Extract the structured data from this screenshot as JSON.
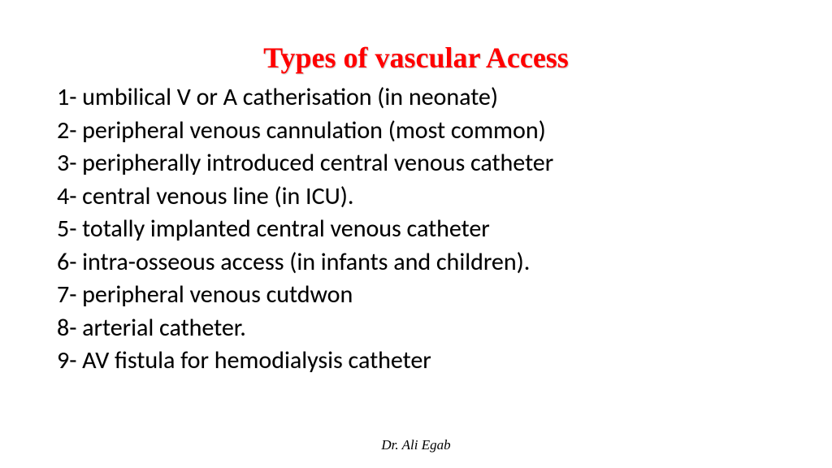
{
  "title": "Types of vascular Access",
  "items": [
    {
      "num": "1- ",
      "text": "umbilical V or A catherisation (in neonate)"
    },
    {
      "num": "2- ",
      "text": "peripheral venous cannulation (most common)"
    },
    {
      "num": "3- ",
      "text": "peripherally introduced central venous catheter"
    },
    {
      "num": "4- ",
      "text": "central venous line (in ICU)."
    },
    {
      "num": "5- ",
      "text": "totally implanted central venous catheter"
    },
    {
      "num": "6- ",
      "text": "intra-osseous access (in infants and children)."
    },
    {
      "num": "7- ",
      "text": "peripheral venous cutdwon"
    },
    {
      "num": "8- ",
      "text": "arterial catheter."
    },
    {
      "num": "9- ",
      "text": "AV fistula for hemodialysis catheter"
    }
  ],
  "footer": "Dr. Ali Egab",
  "colors": {
    "title_color": "#ff0000",
    "text_color": "#000000",
    "background": "#ffffff"
  },
  "typography": {
    "title_fontsize": 36,
    "body_fontsize": 30,
    "footer_fontsize": 17,
    "title_font": "Georgia serif bold",
    "body_font": "Calibri sans-serif",
    "footer_font": "Georgia italic"
  }
}
